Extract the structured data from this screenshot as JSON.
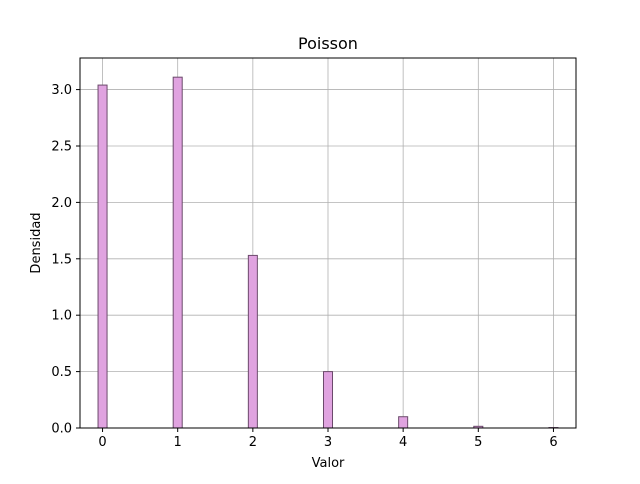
{
  "chart_data": {
    "type": "bar",
    "title": "Poisson",
    "xlabel": "Valor",
    "ylabel": "Densidad",
    "xlim": [
      -0.3,
      6.3
    ],
    "ylim": [
      0,
      3.28
    ],
    "xticks": [
      0,
      1,
      2,
      3,
      4,
      5,
      6
    ],
    "xtick_labels": [
      "0",
      "1",
      "2",
      "3",
      "4",
      "5",
      "6"
    ],
    "yticks": [
      0.0,
      0.5,
      1.0,
      1.5,
      2.0,
      2.5,
      3.0
    ],
    "ytick_labels": [
      "0.0",
      "0.5",
      "1.0",
      "1.5",
      "2.0",
      "2.5",
      "3.0"
    ],
    "grid": true,
    "bar_width": 0.12,
    "x": [
      0,
      1,
      2,
      3,
      4,
      5,
      6
    ],
    "values": [
      3.04,
      3.11,
      1.53,
      0.5,
      0.1,
      0.015,
      0.004
    ],
    "colors": {
      "bar_fill": "#e0a3e0",
      "bar_edge": "#6b4a6b",
      "grid": "#b0b0b0",
      "axis": "#000000"
    }
  }
}
